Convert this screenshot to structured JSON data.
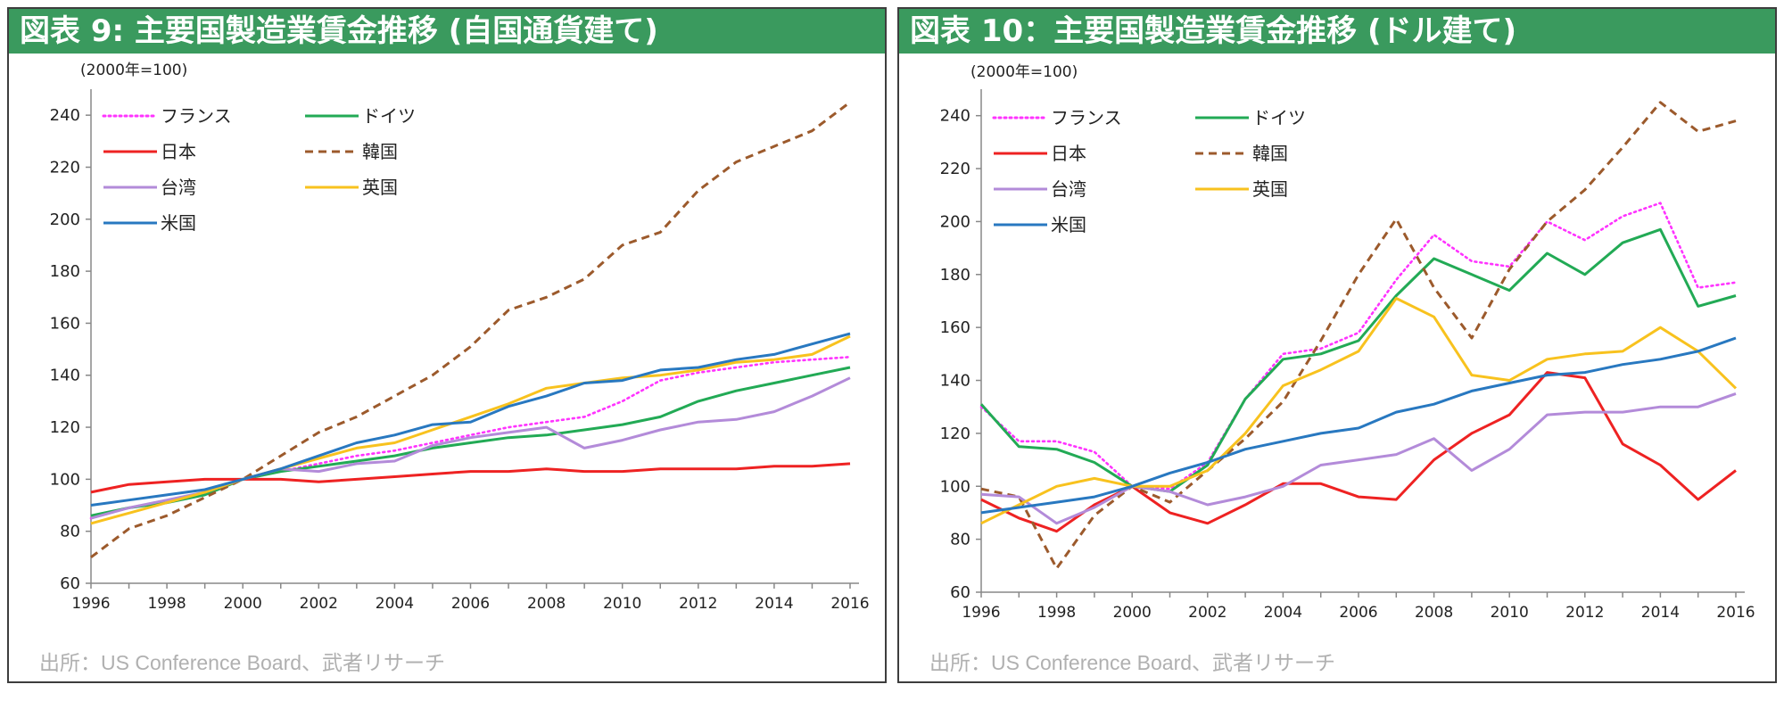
{
  "panels": [
    {
      "title": "図表 9: 主要国製造業賃金推移 (自国通貨建て)",
      "source": "出所：US Conference Board、武者リサーチ"
    },
    {
      "title": "図表 10：主要国製造業賃金推移 (ドル建て)",
      "source": "出所：US Conference Board、武者リサーチ"
    }
  ],
  "chart_data": [
    {
      "type": "line",
      "title": "",
      "unit_label": "(2000年=100)",
      "xlabel": "",
      "ylabel": "",
      "x": [
        1996,
        1997,
        1998,
        1999,
        2000,
        2001,
        2002,
        2003,
        2004,
        2005,
        2006,
        2007,
        2008,
        2009,
        2010,
        2011,
        2012,
        2013,
        2014,
        2015,
        2016
      ],
      "xticks": [
        "1996",
        "1998",
        "2000",
        "2002",
        "2004",
        "2006",
        "2008",
        "2010",
        "2012",
        "2014",
        "2016"
      ],
      "yticks": [
        "60",
        "80",
        "100",
        "120",
        "140",
        "160",
        "180",
        "200",
        "220",
        "240"
      ],
      "ylim": [
        60,
        250
      ],
      "grid": false,
      "legend": "top-left",
      "series": [
        {
          "name": "フランス",
          "color": "#ff33ff",
          "style": "dotted",
          "values": [
            85,
            89,
            92,
            95,
            100,
            103,
            106,
            109,
            111,
            114,
            117,
            120,
            122,
            124,
            130,
            138,
            141,
            143,
            145,
            146,
            147
          ]
        },
        {
          "name": "ドイツ",
          "color": "#22aa55",
          "style": "solid",
          "values": [
            86,
            89,
            91,
            94,
            100,
            103,
            105,
            107,
            109,
            112,
            114,
            116,
            117,
            119,
            121,
            124,
            130,
            134,
            137,
            140,
            143
          ]
        },
        {
          "name": "日本",
          "color": "#ee2222",
          "style": "solid",
          "values": [
            95,
            98,
            99,
            100,
            100,
            100,
            99,
            100,
            101,
            102,
            103,
            103,
            104,
            103,
            103,
            104,
            104,
            104,
            105,
            105,
            106
          ]
        },
        {
          "name": "韓国",
          "color": "#9c5a2c",
          "style": "dashed",
          "values": [
            70,
            81,
            86,
            93,
            100,
            109,
            118,
            124,
            132,
            140,
            151,
            165,
            170,
            177,
            190,
            195,
            211,
            222,
            228,
            234,
            245
          ]
        },
        {
          "name": "台湾",
          "color": "#b38bd9",
          "style": "solid",
          "values": [
            85,
            89,
            92,
            95,
            100,
            104,
            103,
            106,
            107,
            113,
            116,
            118,
            120,
            112,
            115,
            119,
            122,
            123,
            126,
            132,
            139
          ]
        },
        {
          "name": "英国",
          "color": "#f8c21e",
          "style": "solid",
          "values": [
            83,
            87,
            91,
            95,
            100,
            104,
            108,
            112,
            114,
            119,
            124,
            129,
            135,
            137,
            139,
            140,
            142,
            145,
            146,
            148,
            155
          ]
        },
        {
          "name": "米国",
          "color": "#2878c0",
          "style": "solid",
          "values": [
            90,
            92,
            94,
            96,
            100,
            104,
            109,
            114,
            117,
            121,
            122,
            128,
            132,
            137,
            138,
            142,
            143,
            146,
            148,
            152,
            156
          ]
        }
      ]
    },
    {
      "type": "line",
      "title": "",
      "unit_label": "(2000年=100)",
      "xlabel": "",
      "ylabel": "",
      "x": [
        1996,
        1997,
        1998,
        1999,
        2000,
        2001,
        2002,
        2003,
        2004,
        2005,
        2006,
        2007,
        2008,
        2009,
        2010,
        2011,
        2012,
        2013,
        2014,
        2015,
        2016
      ],
      "xticks": [
        "1996",
        "1998",
        "2000",
        "2002",
        "2004",
        "2006",
        "2008",
        "2010",
        "2012",
        "2014",
        "2016"
      ],
      "yticks": [
        "60",
        "80",
        "100",
        "120",
        "140",
        "160",
        "180",
        "200",
        "220",
        "240"
      ],
      "ylim": [
        60,
        250
      ],
      "grid": false,
      "legend": "top-left",
      "series": [
        {
          "name": "フランス",
          "color": "#ff33ff",
          "style": "dotted",
          "values": [
            130,
            117,
            117,
            113,
            100,
            99,
            109,
            133,
            150,
            152,
            158,
            178,
            195,
            185,
            183,
            200,
            193,
            202,
            207,
            175,
            177
          ]
        },
        {
          "name": "ドイツ",
          "color": "#22aa55",
          "style": "solid",
          "values": [
            131,
            115,
            114,
            109,
            100,
            98,
            108,
            133,
            148,
            150,
            155,
            172,
            186,
            180,
            174,
            188,
            180,
            192,
            197,
            168,
            172
          ]
        },
        {
          "name": "日本",
          "color": "#ee2222",
          "style": "solid",
          "values": [
            95,
            88,
            83,
            93,
            100,
            90,
            86,
            93,
            101,
            101,
            96,
            95,
            110,
            120,
            127,
            143,
            141,
            116,
            108,
            95,
            106
          ]
        },
        {
          "name": "韓国",
          "color": "#9c5a2c",
          "style": "dashed",
          "values": [
            99,
            96,
            69,
            89,
            100,
            94,
            106,
            118,
            132,
            155,
            180,
            201,
            175,
            156,
            182,
            200,
            212,
            228,
            245,
            234,
            238
          ]
        },
        {
          "name": "台湾",
          "color": "#b38bd9",
          "style": "solid",
          "values": [
            97,
            96,
            86,
            92,
            100,
            98,
            93,
            96,
            100,
            108,
            110,
            112,
            118,
            106,
            114,
            127,
            128,
            128,
            130,
            130,
            135
          ]
        },
        {
          "name": "英国",
          "color": "#f8c21e",
          "style": "solid",
          "values": [
            86,
            93,
            100,
            103,
            100,
            100,
            106,
            120,
            138,
            144,
            151,
            171,
            164,
            142,
            140,
            148,
            150,
            151,
            160,
            151,
            137
          ]
        },
        {
          "name": "米国",
          "color": "#2878c0",
          "style": "solid",
          "values": [
            90,
            92,
            94,
            96,
            100,
            105,
            109,
            114,
            117,
            120,
            122,
            128,
            131,
            136,
            139,
            142,
            143,
            146,
            148,
            151,
            156
          ]
        }
      ]
    }
  ]
}
